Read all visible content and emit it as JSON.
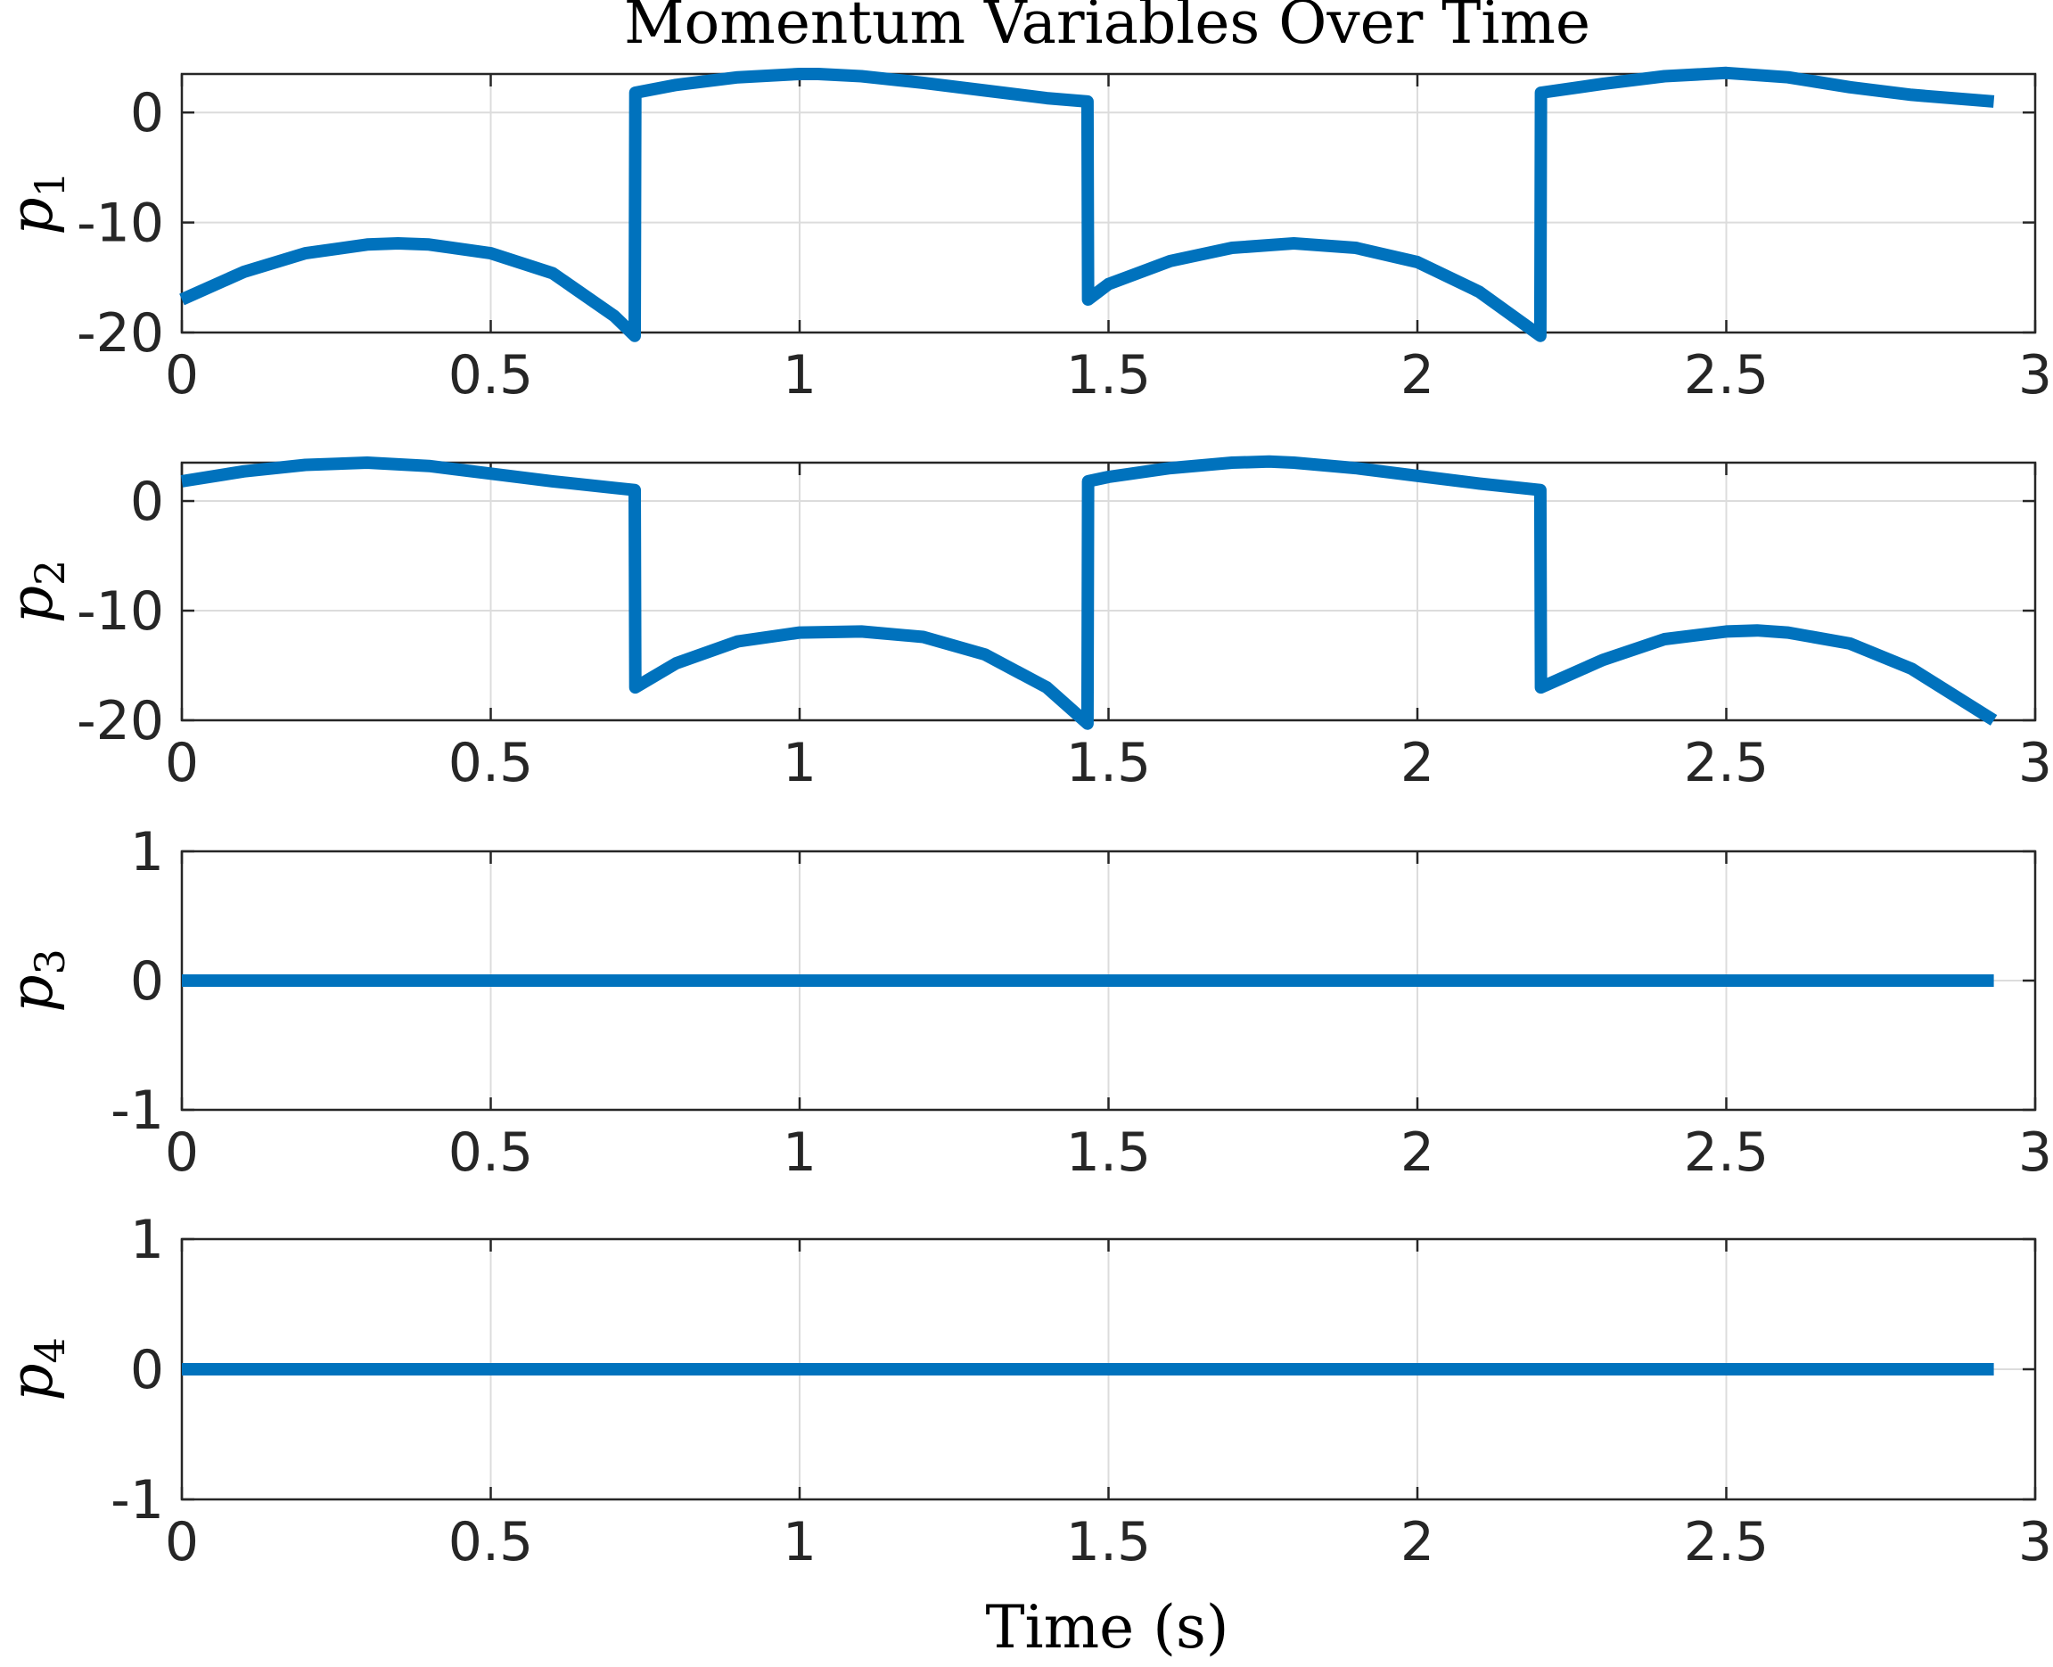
{
  "figure": {
    "title": "Momentum Variables Over Time",
    "xlabel": "Time (s)"
  },
  "colors": {
    "line": "#0072BD"
  },
  "chart_data": [
    {
      "type": "line",
      "ylabel": "p",
      "ylabel_sub": "1",
      "xlim": [
        0,
        3
      ],
      "ylim": [
        -20,
        3.5
      ],
      "xticks": [
        "0",
        "0.5",
        "1",
        "1.5",
        "2",
        "2.5",
        "3"
      ],
      "yticks": [
        "-20",
        "-10",
        "0"
      ],
      "grid": true,
      "series": [
        {
          "x": [
            0,
            0.1,
            0.2,
            0.3,
            0.35,
            0.4,
            0.5,
            0.6,
            0.7,
            0.733,
            0.734,
            0.8,
            0.9,
            1.0,
            1.03,
            1.1,
            1.2,
            1.3,
            1.4,
            1.466,
            1.467,
            1.5,
            1.6,
            1.7,
            1.8,
            1.9,
            2.0,
            2.1,
            2.199,
            2.2,
            2.3,
            2.4,
            2.5,
            2.6,
            2.7,
            2.8,
            2.933
          ],
          "y": [
            -17,
            -14.5,
            -12.8,
            -12,
            -11.9,
            -12,
            -12.8,
            -14.6,
            -18.5,
            -20.3,
            1.8,
            2.5,
            3.2,
            3.5,
            3.5,
            3.3,
            2.7,
            2.0,
            1.3,
            1.0,
            -17,
            -15.6,
            -13.5,
            -12.3,
            -11.9,
            -12.3,
            -13.6,
            -16.3,
            -20.3,
            1.8,
            2.6,
            3.3,
            3.6,
            3.2,
            2.3,
            1.6,
            1.0
          ]
        }
      ]
    },
    {
      "type": "line",
      "ylabel": "p",
      "ylabel_sub": "2",
      "xlim": [
        0,
        3
      ],
      "ylim": [
        -20,
        3.5
      ],
      "xticks": [
        "0",
        "0.5",
        "1",
        "1.5",
        "2",
        "2.5",
        "3"
      ],
      "yticks": [
        "-20",
        "-10",
        "0"
      ],
      "grid": true,
      "series": [
        {
          "x": [
            0,
            0.1,
            0.2,
            0.3,
            0.4,
            0.5,
            0.6,
            0.7,
            0.733,
            0.734,
            0.8,
            0.9,
            1.0,
            1.1,
            1.2,
            1.3,
            1.4,
            1.466,
            1.467,
            1.5,
            1.6,
            1.7,
            1.76,
            1.8,
            1.9,
            2.0,
            2.1,
            2.199,
            2.2,
            2.3,
            2.4,
            2.5,
            2.55,
            2.6,
            2.7,
            2.8,
            2.933
          ],
          "y": [
            1.8,
            2.7,
            3.3,
            3.5,
            3.2,
            2.5,
            1.8,
            1.2,
            1.0,
            -17,
            -14.8,
            -12.8,
            -12.0,
            -11.9,
            -12.4,
            -14.0,
            -17.0,
            -20.3,
            1.8,
            2.2,
            3.0,
            3.5,
            3.6,
            3.5,
            3.0,
            2.3,
            1.6,
            1.0,
            -17,
            -14.5,
            -12.6,
            -11.9,
            -11.8,
            -12.0,
            -13.0,
            -15.3,
            -20.0
          ]
        }
      ]
    },
    {
      "type": "line",
      "ylabel": "p",
      "ylabel_sub": "3",
      "xlim": [
        0,
        3
      ],
      "ylim": [
        -1,
        1
      ],
      "xticks": [
        "0",
        "0.5",
        "1",
        "1.5",
        "2",
        "2.5",
        "3"
      ],
      "yticks": [
        "-1",
        "0",
        "1"
      ],
      "grid": true,
      "series": [
        {
          "x": [
            0,
            2.933
          ],
          "y": [
            0,
            0
          ]
        }
      ]
    },
    {
      "type": "line",
      "ylabel": "p",
      "ylabel_sub": "4",
      "xlim": [
        0,
        3
      ],
      "ylim": [
        -1,
        1
      ],
      "xticks": [
        "0",
        "0.5",
        "1",
        "1.5",
        "2",
        "2.5",
        "3"
      ],
      "yticks": [
        "-1",
        "0",
        "1"
      ],
      "grid": true,
      "series": [
        {
          "x": [
            0,
            2.933
          ],
          "y": [
            0,
            0
          ]
        }
      ]
    }
  ]
}
